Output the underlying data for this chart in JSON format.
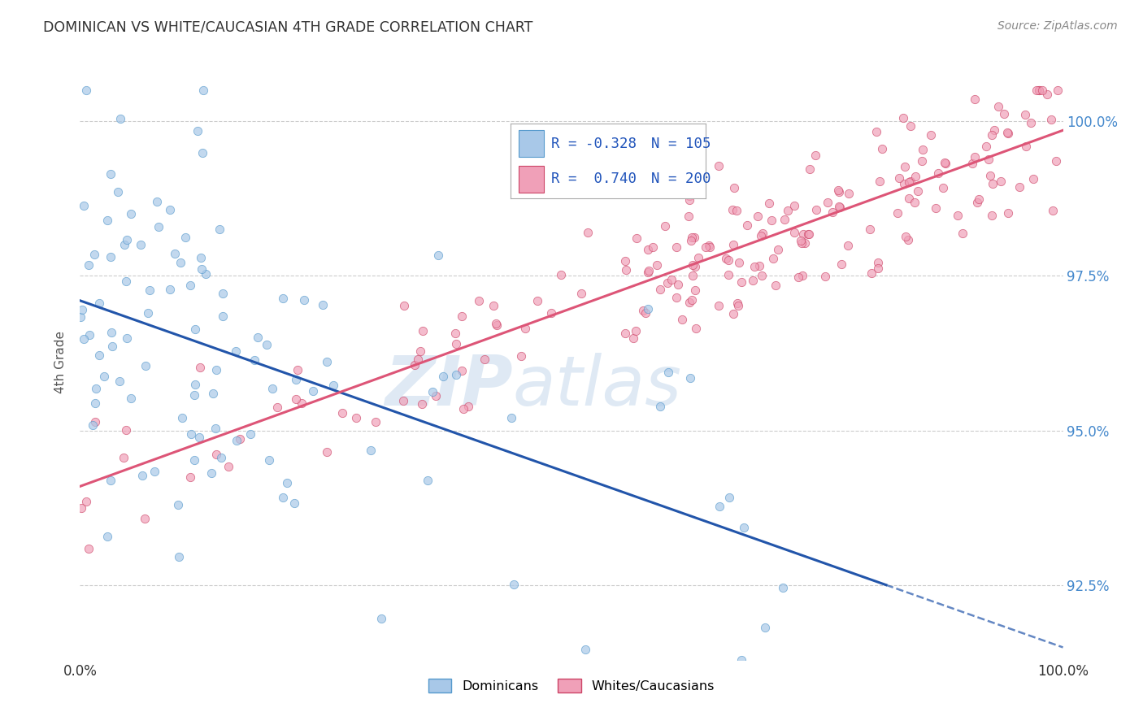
{
  "title": "DOMINICAN VS WHITE/CAUCASIAN 4TH GRADE CORRELATION CHART",
  "source": "Source: ZipAtlas.com",
  "ylabel": "4th Grade",
  "yticks": [
    92.5,
    95.0,
    97.5,
    100.0
  ],
  "ytick_labels": [
    "92.5%",
    "95.0%",
    "97.5%",
    "100.0%"
  ],
  "xlim": [
    0.0,
    1.0
  ],
  "ylim": [
    91.3,
    100.9
  ],
  "color_blue": "#A8C8E8",
  "color_pink": "#F0A0B8",
  "color_blue_line": "#2255AA",
  "color_pink_line": "#DD5577",
  "color_blue_marker_edge": "#5599CC",
  "color_pink_marker_edge": "#CC4466",
  "watermark_zip": "ZIP",
  "watermark_atlas": "atlas",
  "blue_R": -0.328,
  "blue_N": 105,
  "pink_R": 0.74,
  "pink_N": 200,
  "blue_line_x0": 0.0,
  "blue_line_y0": 97.1,
  "blue_line_x1": 1.0,
  "blue_line_y1": 91.5,
  "blue_line_solid_end": 0.82,
  "pink_line_x0": 0.0,
  "pink_line_y0": 94.1,
  "pink_line_x1": 1.0,
  "pink_line_y1": 99.85,
  "background_color": "#ffffff",
  "grid_color": "#cccccc",
  "grid_style": "--",
  "legend_R_blue": "R = -0.328",
  "legend_N_blue": "N = 105",
  "legend_R_pink": "R =  0.740",
  "legend_N_pink": "N = 200",
  "legend_text_color": "#2255BB",
  "ytick_color": "#4488CC",
  "marker_size": 55,
  "marker_alpha": 0.7
}
